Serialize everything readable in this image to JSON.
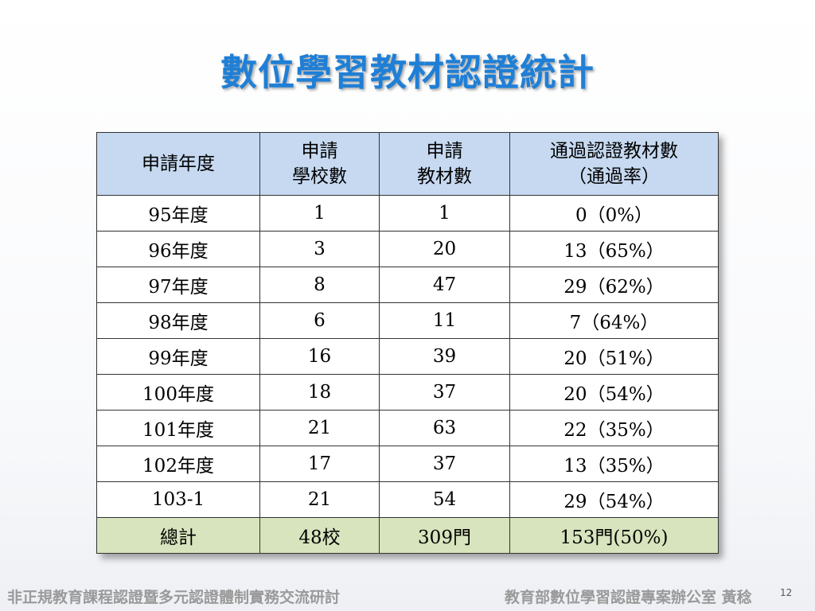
{
  "title": "數位學習教材認證統計",
  "table": {
    "headers": [
      "申請年度",
      "申請\n學校數",
      "申請\n教材數",
      "通過認證教材數\n（通過率）"
    ],
    "rows": [
      [
        "95年度",
        "1",
        "1",
        "0（0%）"
      ],
      [
        "96年度",
        "3",
        "20",
        "13（65%）"
      ],
      [
        "97年度",
        "8",
        "47",
        "29（62%）"
      ],
      [
        "98年度",
        "6",
        "11",
        "7（64%）"
      ],
      [
        "99年度",
        "16",
        "39",
        "20（51%）"
      ],
      [
        "100年度",
        "18",
        "37",
        "20（54%）"
      ],
      [
        "101年度",
        "21",
        "63",
        "22（35%）"
      ],
      [
        "102年度",
        "17",
        "37",
        "13（35%）"
      ],
      [
        "103-1",
        "21",
        "54",
        "29（54%）"
      ]
    ],
    "total": [
      "總計",
      "48校",
      "309門",
      "153門(50%)"
    ]
  },
  "footer": {
    "left": "非正規教育課程認證暨多元認證體制實務交流研討",
    "right": "教育部數位學習認證專案辦公室 黃稔",
    "page": "12"
  },
  "colors": {
    "title": "#1f7fd6",
    "header_bg": "#c6d9f1",
    "total_bg": "#d7e4bd",
    "footer_text": "#9a9a9a"
  }
}
